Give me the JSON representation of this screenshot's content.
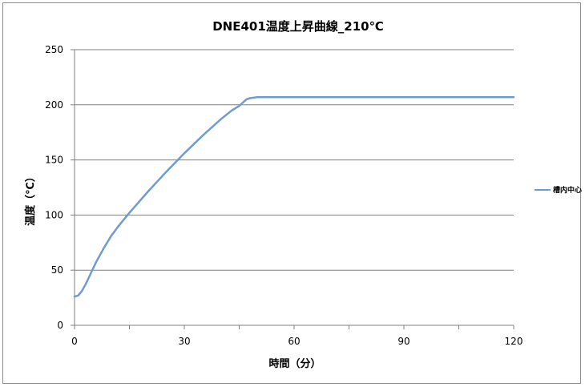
{
  "chart_data": {
    "type": "line",
    "title": "DNE401温度上昇曲線_210℃",
    "xlabel": "時間（分）",
    "ylabel": "温度（℃）",
    "xlim": [
      0,
      120
    ],
    "ylim": [
      0,
      250
    ],
    "xticks": [
      0,
      30,
      60,
      90,
      120
    ],
    "yticks": [
      0,
      50,
      100,
      150,
      200,
      250
    ],
    "grid": true,
    "legend_position": "right",
    "series": [
      {
        "name": "槽内中心",
        "color": "#6f9bd1",
        "x": [
          0,
          1,
          2,
          3,
          4,
          5,
          6,
          8,
          10,
          12,
          15,
          20,
          25,
          30,
          35,
          40,
          43,
          45,
          46,
          47,
          48,
          50,
          55,
          60,
          70,
          80,
          90,
          100,
          110,
          120
        ],
        "y": [
          26,
          27,
          31,
          37,
          44,
          51,
          58,
          70,
          81,
          90,
          102,
          121,
          139,
          156,
          172,
          187,
          195,
          199,
          202,
          205,
          206,
          207,
          207,
          207,
          207,
          207,
          207,
          207,
          207,
          207
        ]
      }
    ]
  }
}
